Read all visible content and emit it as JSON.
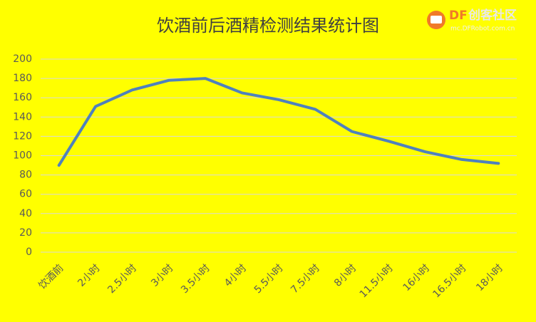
{
  "chart_data": {
    "type": "line",
    "title": "饮酒前后酒精检测结果统计图",
    "categories": [
      "饮酒前",
      "2小时",
      "2.5小时",
      "3小时",
      "3.5小时",
      "4小时",
      "5.5小时",
      "7.5小时",
      "8小时",
      "11.5小时",
      "16小时",
      "16.5小时",
      "18小时"
    ],
    "series": [
      {
        "color": "#4f81bd",
        "values": [
          90,
          151,
          168,
          178,
          180,
          165,
          158,
          148,
          125,
          115,
          104,
          96,
          92
        ]
      }
    ],
    "ylim": [
      0,
      200
    ],
    "yticks": [
      0,
      20,
      40,
      60,
      80,
      100,
      120,
      140,
      160,
      180,
      200
    ],
    "grid": true
  },
  "watermark": {
    "brand_prefix": "DF",
    "brand": "创客社区",
    "url": "mc.DFRobot.com.cn"
  }
}
